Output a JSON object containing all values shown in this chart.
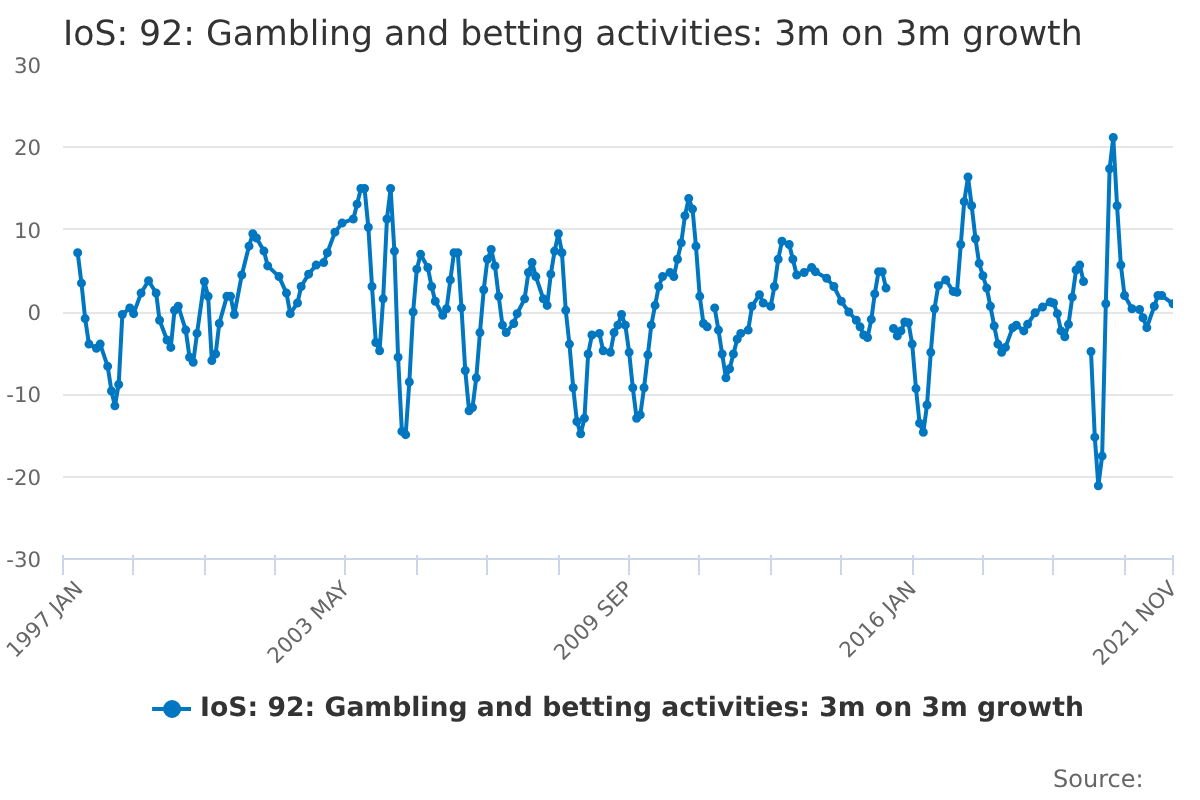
{
  "chart_data": {
    "type": "line",
    "title": "IoS: 92: Gambling and betting activities: 3m on 3m growth",
    "x": [
      "1997-05",
      "1997-06",
      "1997-07",
      "1997-08",
      "1997-10",
      "1997-11",
      "1998-01",
      "1998-02",
      "1998-03",
      "1998-04",
      "1998-05",
      "1998-07",
      "1998-08",
      "1998-10",
      "1998-12",
      "1999-02",
      "1999-03",
      "1999-05",
      "1999-06",
      "1999-07",
      "1999-08",
      "1999-10",
      "1999-11",
      "1999-12",
      "2000-01",
      "2000-03",
      "2000-04",
      "2000-05",
      "2000-06",
      "2000-07",
      "2000-09",
      "2000-10",
      "2000-11",
      "2001-01",
      "2001-03",
      "2001-04",
      "2001-05",
      "2001-07",
      "2001-08",
      "2001-11",
      "2002-01",
      "2002-02",
      "2002-04",
      "2002-05",
      "2002-07",
      "2002-09",
      "2002-11",
      "2002-12",
      "2003-02",
      "2003-04",
      "2003-07",
      "2003-08",
      "2003-09",
      "2003-10",
      "2003-11",
      "2003-12",
      "2004-01",
      "2004-02",
      "2004-03",
      "2004-04",
      "2004-05",
      "2004-06",
      "2004-07",
      "2004-08",
      "2004-09",
      "2004-10",
      "2004-11",
      "2004-12",
      "2005-01",
      "2005-03",
      "2005-04",
      "2005-05",
      "2005-07",
      "2005-08",
      "2005-09",
      "2005-10",
      "2005-11",
      "2005-12",
      "2006-01",
      "2006-02",
      "2006-03",
      "2006-04",
      "2006-05",
      "2006-06",
      "2006-07",
      "2006-08",
      "2006-09",
      "2006-10",
      "2006-11",
      "2006-12",
      "2007-02",
      "2007-03",
      "2007-05",
      "2007-06",
      "2007-07",
      "2007-08",
      "2007-10",
      "2007-11",
      "2007-12",
      "2008-01",
      "2008-02",
      "2008-03",
      "2008-04",
      "2008-05",
      "2008-06",
      "2008-07",
      "2008-08",
      "2008-09",
      "2008-10",
      "2008-11",
      "2009-01",
      "2009-02",
      "2009-04",
      "2009-05",
      "2009-06",
      "2009-07",
      "2009-08",
      "2009-09",
      "2009-10",
      "2009-11",
      "2009-12",
      "2010-01",
      "2010-02",
      "2010-03",
      "2010-04",
      "2010-05",
      "2010-06",
      "2010-08",
      "2010-09",
      "2010-10",
      "2010-11",
      "2010-12",
      "2011-01",
      "2011-02",
      "2011-03",
      "2011-04",
      "2011-05",
      "2011-06",
      "2011-07",
      "2011-08",
      "2011-09",
      "2011-10",
      "2011-11",
      "2011-12",
      "2012-01",
      "2012-02",
      "2012-03",
      "2012-05",
      "2012-06",
      "2012-08",
      "2012-09",
      "2012-11",
      "2012-12",
      "2013-01",
      "2013-02",
      "2013-04",
      "2013-05",
      "2013-06",
      "2013-08",
      "2013-10",
      "2013-11",
      "2014-02",
      "2014-04",
      "2014-06",
      "2014-08",
      "2014-10",
      "2014-11",
      "2014-12",
      "2015-01",
      "2015-02",
      "2015-03",
      "2015-04",
      "2015-05",
      "2015-06",
      "2015-07",
      "2015-08",
      "2015-09",
      "2015-10",
      "2015-11",
      "2015-12",
      "2016-01",
      "2016-02",
      "2016-03",
      "2016-04",
      "2016-05",
      "2016-06",
      "2016-07",
      "2016-08",
      "2016-10",
      "2016-12",
      "2017-01",
      "2017-02",
      "2017-03",
      "2017-04",
      "2017-05",
      "2017-06",
      "2017-07",
      "2017-08",
      "2017-09",
      "2017-10",
      "2017-11",
      "2017-12",
      "2018-01",
      "2018-02",
      "2018-04",
      "2018-05",
      "2018-07",
      "2018-08",
      "2018-10",
      "2018-12",
      "2019-02",
      "2019-03",
      "2019-04",
      "2019-05",
      "2019-06",
      "2019-07",
      "2019-08",
      "2019-09",
      "2019-10",
      "2019-11",
      "2019-12",
      "2020-01",
      "2020-02",
      "2020-03",
      "2020-04",
      "2020-05",
      "2020-06",
      "2020-07",
      "2020-08",
      "2020-09",
      "2020-10",
      "2020-12",
      "2021-02",
      "2021-03",
      "2021-04",
      "2021-06",
      "2021-07",
      "2021-08",
      "2021-11"
    ],
    "series": [
      {
        "name": "IoS: 92: Gambling and betting activities: 3m on 3m growth",
        "color": "#0077c0",
        "values": [
          7.2,
          3.5,
          -0.8,
          -3.9,
          -4.4,
          -3.9,
          -6.6,
          -9.6,
          -11.4,
          -8.8,
          -0.3,
          0.5,
          -0.2,
          2.3,
          3.8,
          2.3,
          -1.0,
          -3.4,
          -4.3,
          0.2,
          0.7,
          -2.2,
          -5.5,
          -6.1,
          -2.6,
          3.7,
          1.9,
          -5.9,
          -5.1,
          -1.4,
          1.9,
          1.9,
          -0.3,
          4.5,
          8.0,
          9.5,
          9.0,
          7.4,
          5.6,
          4.3,
          2.3,
          -0.2,
          1.1,
          3.1,
          4.6,
          5.7,
          6.0,
          7.2,
          9.7,
          10.8,
          11.3,
          13.1,
          15.0,
          15.0,
          10.3,
          3.1,
          -3.7,
          -4.7,
          1.6,
          11.3,
          15.0,
          7.4,
          -5.5,
          -14.5,
          -14.9,
          -8.5,
          0,
          5.2,
          7.0,
          5.4,
          3.1,
          1.3,
          -0.4,
          0.4,
          3.9,
          7.2,
          7.2,
          0.5,
          -7.1,
          -12.0,
          -11.6,
          -8.0,
          -2.5,
          2.7,
          6.4,
          7.6,
          5.6,
          1.9,
          -1.6,
          -2.5,
          -1.4,
          -0.2,
          1.6,
          4.8,
          6.0,
          4.3,
          1.6,
          0.8,
          4.6,
          7.4,
          9.5,
          7.2,
          0.2,
          -3.9,
          -9.2,
          -13.3,
          -14.8,
          -12.9,
          -5.1,
          -2.8,
          -2.6,
          -4.7,
          -4.9,
          -2.5,
          -1.6,
          -0.3,
          -1.6,
          -4.9,
          -9.2,
          -12.9,
          -12.5,
          -9.2,
          -5.2,
          -1.6,
          0.8,
          3.1,
          4.3,
          4.8,
          4.3,
          6.4,
          8.4,
          11.7,
          13.8,
          12.5,
          8.0,
          1.9,
          -1.4,
          -1.8,
          null,
          0.5,
          -2.2,
          -5.1,
          -8.0,
          -6.9,
          -5.1,
          -3.3,
          -2.6,
          -2.2,
          0.7,
          2.1,
          1.1,
          0.7,
          3.1,
          6.4,
          8.6,
          8.2,
          6.4,
          4.5,
          4.8,
          5.4,
          4.9,
          4.1,
          3.1,
          1.3,
          0,
          -1.0,
          -1.8,
          -2.8,
          -3.1,
          -0.9,
          2.2,
          4.9,
          4.9,
          2.9,
          null,
          -2.0,
          -2.9,
          -2.3,
          -1.2,
          -1.3,
          -3.9,
          -9.3,
          -13.5,
          -14.6,
          -11.3,
          -4.9,
          0.4,
          3.2,
          3.9,
          2.5,
          2.4,
          8.2,
          13.4,
          16.4,
          12.9,
          8.9,
          5.9,
          4.4,
          2.9,
          0.7,
          -1.7,
          -3.9,
          -4.9,
          -4.3,
          -1.9,
          -1.6,
          -2.3,
          -1.5,
          -0.1,
          0.6,
          1.2,
          1.1,
          -0.2,
          -2.3,
          -3.0,
          -1.5,
          1.8,
          5.1,
          5.7,
          3.7,
          null,
          -4.8,
          -15.2,
          -21.1,
          -17.5,
          1.0,
          17.4,
          21.2,
          12.9,
          5.7,
          2.0,
          0.4,
          0.3,
          -0.7,
          -1.9,
          0.7,
          2.0,
          2.0,
          1.0
        ]
      }
    ],
    "xlim": [
      "1997-01",
      "2021-11"
    ],
    "xticks": [
      {
        "value": "1997-01",
        "label": "1997 JAN"
      },
      {
        "value": "1998-08",
        "label": null
      },
      {
        "value": "2000-03",
        "label": null
      },
      {
        "value": "2001-10",
        "label": null
      },
      {
        "value": "2003-05",
        "label": "2003 MAY"
      },
      {
        "value": "2004-12",
        "label": null
      },
      {
        "value": "2006-07",
        "label": null
      },
      {
        "value": "2008-02",
        "label": null
      },
      {
        "value": "2009-09",
        "label": "2009 SEP"
      },
      {
        "value": "2011-04",
        "label": null
      },
      {
        "value": "2012-11",
        "label": null
      },
      {
        "value": "2014-06",
        "label": null
      },
      {
        "value": "2016-01",
        "label": "2016 JAN"
      },
      {
        "value": "2017-08",
        "label": null
      },
      {
        "value": "2019-03",
        "label": null
      },
      {
        "value": "2020-10",
        "label": null
      },
      {
        "value": "2021-11",
        "label": "2021 NOV"
      }
    ],
    "ylim": [
      -30,
      30
    ],
    "yticks": [
      -30,
      -20,
      -10,
      0,
      10,
      20,
      30
    ],
    "grid": "y",
    "legend": "bottom",
    "marker": "circle",
    "line_style": "solid",
    "annotations": [
      "Source:"
    ]
  }
}
